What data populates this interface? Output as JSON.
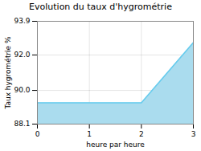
{
  "chart_data": {
    "type": "area",
    "title": "Evolution du taux d'hygrométrie",
    "xlabel": "heure par heure",
    "ylabel": "Taux hygrométrie %",
    "x": [
      0,
      2,
      3
    ],
    "values": [
      89.3,
      89.3,
      92.7
    ],
    "colors": [
      "#aadcee",
      "#66ccee"
    ],
    "xlim": [
      0,
      3
    ],
    "ylim": [
      88.1,
      93.9
    ],
    "xticks": [
      0,
      1,
      2,
      3
    ],
    "yticks": [
      88.1,
      {
        "value": 90.0,
        "label": "90.0"
      },
      {
        "value": 92.0,
        "label": "92.0"
      },
      93.9
    ],
    "grid": true
  }
}
